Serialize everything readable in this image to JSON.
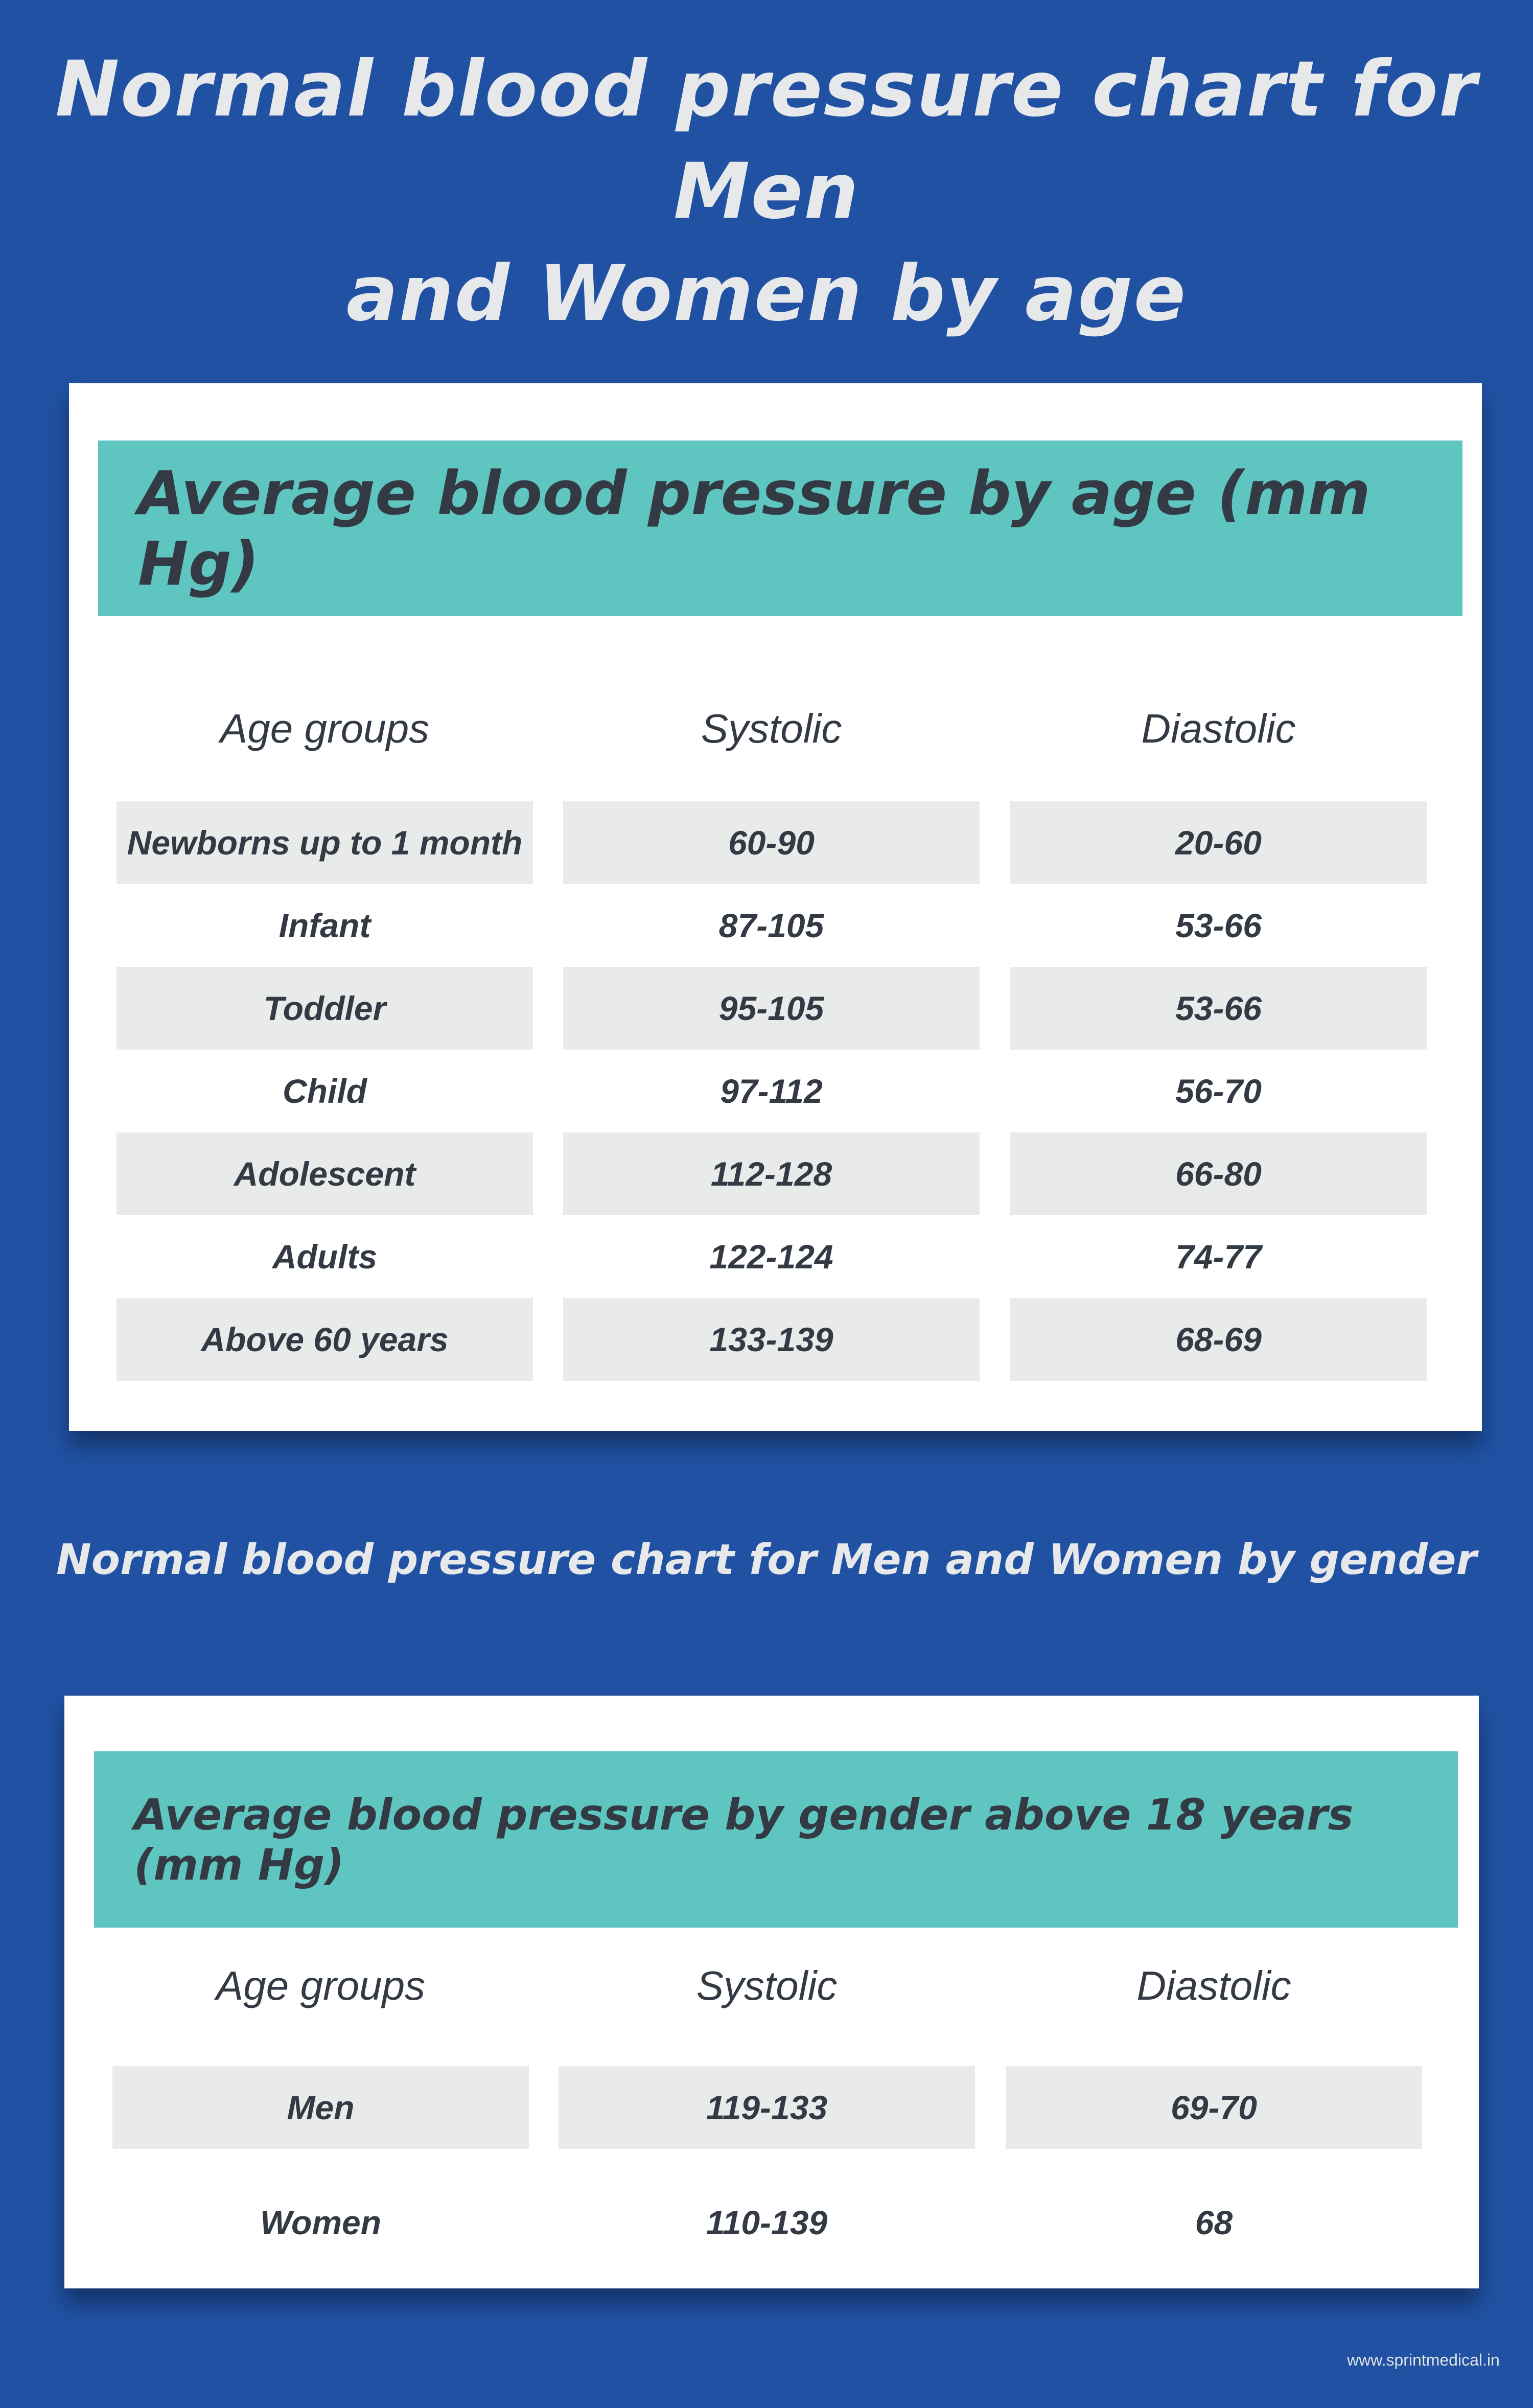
{
  "title": {
    "line1": "Normal blood pressure chart for Men",
    "line2": "and Women by age"
  },
  "age_table": {
    "heading": "Average blood pressure by age (mm Hg)",
    "columns": [
      "Age groups",
      "Systolic",
      "Diastolic"
    ],
    "rows": [
      [
        "Newborns up to 1 month",
        "60-90",
        "20-60"
      ],
      [
        "Infant",
        "87-105",
        "53-66"
      ],
      [
        "Toddler",
        "95-105",
        "53-66"
      ],
      [
        "Child",
        "97-112",
        "56-70"
      ],
      [
        "Adolescent",
        "112-128",
        "66-80"
      ],
      [
        "Adults",
        "122-124",
        "74-77"
      ],
      [
        "Above 60 years",
        "133-139",
        "68-69"
      ]
    ]
  },
  "subtitle": "Normal blood pressure chart for Men and Women by gender",
  "gender_table": {
    "heading": "Average blood pressure by gender above 18 years (mm Hg)",
    "columns": [
      "Age groups",
      "Systolic",
      "Diastolic"
    ],
    "rows": [
      [
        "Men",
        "119-133",
        "69-70"
      ],
      [
        "Women",
        "110-139",
        "68"
      ]
    ]
  },
  "footer": {
    "url": "www.sprintmedical.in"
  },
  "colors": {
    "background": "#2051a3",
    "band": "#5fc5c0",
    "shade": "#e9ebeb",
    "text": "#333a44"
  }
}
